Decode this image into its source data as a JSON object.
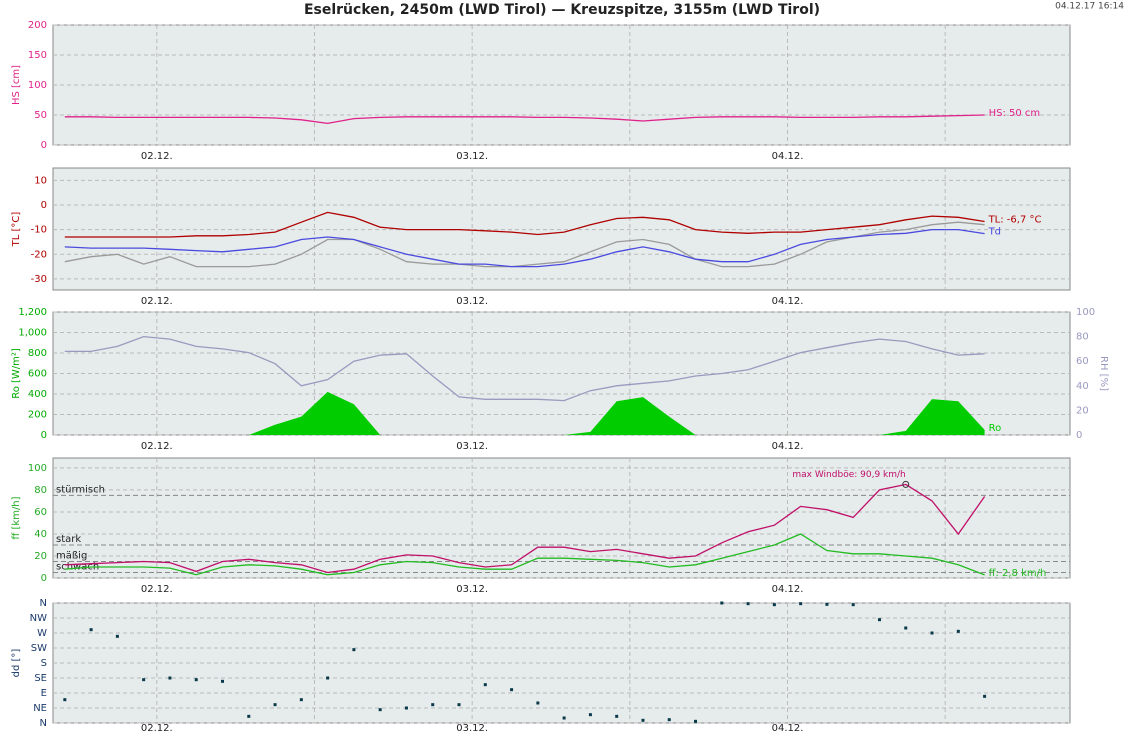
{
  "title": "Eselrücken, 2450m (LWD Tirol) — Kreuzspitze, 3155m (LWD Tirol)",
  "timestamp": "04.12.17 16:14",
  "chart_data": [
    {
      "type": "line",
      "ylabel": "HS [cm]",
      "axis_color": "#e0218a",
      "ylim": [
        0,
        200
      ],
      "yticks": [
        0,
        50,
        100,
        150,
        200
      ],
      "xlim": [
        -7.9,
        69.5
      ],
      "xticks": [
        {
          "value": 0,
          "label": "02.12."
        },
        {
          "value": 24,
          "label": "03.12."
        },
        {
          "value": 48,
          "label": "04.12."
        }
      ],
      "xminor": [
        12,
        36,
        60
      ],
      "x": [
        -7,
        -5,
        -3,
        -1,
        1,
        3,
        5,
        7,
        9,
        11,
        13,
        15,
        17,
        19,
        21,
        23,
        25,
        27,
        29,
        31,
        33,
        35,
        37,
        39,
        41,
        43,
        45,
        47,
        49,
        51,
        53,
        55,
        57,
        59,
        61,
        63
      ],
      "series": [
        {
          "name": "HS",
          "label": "HS: 50 cm",
          "color": "#e0218a",
          "values": [
            47,
            47,
            46,
            46,
            46,
            46,
            46,
            46,
            45,
            42,
            36,
            44,
            46,
            47,
            47,
            47,
            47,
            47,
            46,
            46,
            45,
            43,
            40,
            43,
            46,
            47,
            47,
            47,
            46,
            46,
            46,
            47,
            47,
            48,
            49,
            50
          ]
        }
      ]
    },
    {
      "type": "line",
      "ylabel": "TL [°C]",
      "axis_color": "#b00000",
      "ylim": [
        -34.5,
        15
      ],
      "yticks": [
        10,
        0,
        -10,
        -20,
        -30
      ],
      "xlim": [
        -7.9,
        69.5
      ],
      "xticks": [
        {
          "value": 0,
          "label": "02.12."
        },
        {
          "value": 24,
          "label": "03.12."
        },
        {
          "value": 48,
          "label": "04.12."
        }
      ],
      "xminor": [
        12,
        36,
        60
      ],
      "x": [
        -7,
        -5,
        -3,
        -1,
        1,
        3,
        5,
        7,
        9,
        11,
        13,
        15,
        17,
        19,
        21,
        23,
        25,
        27,
        29,
        31,
        33,
        35,
        37,
        39,
        41,
        43,
        45,
        47,
        49,
        51,
        53,
        55,
        57,
        59,
        61,
        63
      ],
      "series": [
        {
          "color": "#9a9a9a",
          "values": [
            -23,
            -21,
            -20,
            -24,
            -21,
            -25,
            -25,
            -25,
            -24,
            -20,
            -14,
            -14,
            -18,
            -23,
            -24,
            -24,
            -25,
            -25,
            -24,
            -23,
            -19,
            -15,
            -14,
            -16,
            -22,
            -25,
            -25,
            -24,
            -20,
            -15,
            -13,
            -11,
            -10,
            -8,
            -7,
            -8
          ]
        },
        {
          "name": "Td",
          "label": "Td",
          "color": "#4a4ae0",
          "values": [
            -17,
            -17.5,
            -17.5,
            -17.5,
            -18,
            -18.5,
            -19,
            -18,
            -17,
            -14,
            -13,
            -14,
            -17,
            -20,
            -22,
            -24,
            -24,
            -25,
            -25,
            -24,
            -22,
            -19,
            -17,
            -19,
            -22,
            -23,
            -23,
            -20,
            -16,
            -14,
            -13,
            -12,
            -11.5,
            -10,
            -10,
            -11.6
          ]
        },
        {
          "name": "TL",
          "label": "TL: -6,7 °C",
          "color": "#b00000",
          "values": [
            -13,
            -13,
            -13,
            -13,
            -13,
            -12.5,
            -12.5,
            -12,
            -11,
            -7,
            -3,
            -5,
            -9,
            -10,
            -10,
            -10,
            -10.5,
            -11,
            -12,
            -11,
            -8,
            -5.5,
            -5,
            -6,
            -10,
            -11,
            -11.5,
            -11,
            -11,
            -10,
            -9,
            -8,
            -6,
            -4.5,
            -5,
            -6.7
          ]
        }
      ]
    },
    {
      "type": "area",
      "ylabel": "Ro [W/m²]",
      "axis_color": "#00aa00",
      "ylim": [
        0,
        1200
      ],
      "yticks": [
        0,
        200,
        400,
        600,
        800,
        {
          "value": 1000,
          "label": "1,000"
        },
        {
          "value": 1200,
          "label": "1,200"
        }
      ],
      "y2label": "RH [%]",
      "y2_color": "#9a9ac0",
      "y2lim": [
        0,
        100
      ],
      "y2ticks": [
        0,
        20,
        40,
        60,
        80,
        100
      ],
      "xlim": [
        -7.9,
        69.5
      ],
      "xticks": [
        {
          "value": 0,
          "label": "02.12."
        },
        {
          "value": 24,
          "label": "03.12."
        },
        {
          "value": 48,
          "label": "04.12."
        }
      ],
      "xminor": [
        12,
        36,
        60
      ],
      "x": [
        -7,
        -5,
        -3,
        -1,
        1,
        3,
        5,
        7,
        9,
        11,
        13,
        15,
        17,
        19,
        21,
        23,
        25,
        27,
        29,
        31,
        33,
        35,
        37,
        39,
        41,
        43,
        45,
        47,
        49,
        51,
        53,
        55,
        57,
        59,
        61,
        63
      ],
      "series": [
        {
          "name": "Ro",
          "label": "Ro",
          "color": "#00cc00",
          "values": [
            0,
            0,
            0,
            0,
            0,
            0,
            0,
            0,
            100,
            180,
            420,
            300,
            0,
            0,
            0,
            0,
            0,
            0,
            0,
            0,
            30,
            330,
            370,
            180,
            0,
            0,
            0,
            0,
            0,
            0,
            0,
            0,
            40,
            350,
            330,
            50
          ]
        },
        {
          "name": "RH",
          "type": "line",
          "axis": "y2",
          "color": "#9a9ac0",
          "values": [
            68,
            68,
            72,
            80,
            78,
            72,
            70,
            67,
            58,
            40,
            45,
            60,
            65,
            66,
            48,
            31,
            29,
            29,
            29,
            28,
            36,
            40,
            42,
            44,
            48,
            50,
            53,
            60,
            67,
            71,
            75,
            78,
            76,
            70,
            65,
            66
          ]
        }
      ]
    },
    {
      "type": "line",
      "ylabel": "ff [km/h]",
      "axis_color": "#22aa22",
      "ylim": [
        0,
        109
      ],
      "yticks": [
        0,
        20,
        40,
        60,
        80,
        100
      ],
      "thresholds": [
        {
          "value": 75,
          "label": "stürmisch"
        },
        {
          "value": 30,
          "label": "stark"
        },
        {
          "value": 15,
          "label": "mäßig"
        },
        {
          "value": 5,
          "label": "schwach"
        }
      ],
      "annotation": "max Windböe: 90,9 km/h",
      "xlim": [
        -7.9,
        69.5
      ],
      "xticks": [
        {
          "value": 0,
          "label": "02.12."
        },
        {
          "value": 24,
          "label": "03.12."
        },
        {
          "value": 48,
          "label": "04.12."
        }
      ],
      "xminor": [
        12,
        36,
        60
      ],
      "x": [
        -7,
        -5,
        -3,
        -1,
        1,
        3,
        5,
        7,
        9,
        11,
        13,
        15,
        17,
        19,
        21,
        23,
        25,
        27,
        29,
        31,
        33,
        35,
        37,
        39,
        41,
        43,
        45,
        47,
        49,
        51,
        53,
        55,
        57,
        59,
        61,
        63
      ],
      "series": [
        {
          "color": "#c0106a",
          "max_marker": true,
          "values": [
            12,
            13,
            14,
            15,
            14,
            6,
            15,
            17,
            14,
            12,
            5,
            8,
            17,
            21,
            20,
            14,
            10,
            12,
            28,
            28,
            24,
            26,
            22,
            18,
            20,
            32,
            42,
            48,
            65,
            62,
            55,
            80,
            85,
            70,
            40,
            74
          ]
        },
        {
          "name": "ff",
          "label": "ff: 2,8 km/h",
          "color": "#22bb22",
          "values": [
            8,
            10,
            10,
            10,
            9,
            3,
            10,
            12,
            11,
            8,
            3,
            5,
            12,
            15,
            14,
            10,
            8,
            8,
            18,
            18,
            17,
            16,
            14,
            10,
            12,
            18,
            24,
            30,
            40,
            25,
            22,
            22,
            20,
            18,
            12,
            2.8
          ]
        }
      ]
    },
    {
      "type": "scatter",
      "ylabel": "dd [°]",
      "axis_color": "#1a3a6a",
      "ylim": [
        0,
        360
      ],
      "yticks": [
        {
          "value": 0,
          "label": "N"
        },
        {
          "value": 45,
          "label": "NE"
        },
        {
          "value": 90,
          "label": "E"
        },
        {
          "value": 135,
          "label": "SE"
        },
        {
          "value": 180,
          "label": "S"
        },
        {
          "value": 225,
          "label": "SW"
        },
        {
          "value": 270,
          "label": "W"
        },
        {
          "value": 315,
          "label": "NW"
        },
        {
          "value": 360,
          "label": "N"
        }
      ],
      "xlim": [
        -7.9,
        69.5
      ],
      "xticks": [
        {
          "value": 0,
          "label": "02.12."
        },
        {
          "value": 24,
          "label": "03.12."
        },
        {
          "value": 48,
          "label": "04.12."
        }
      ],
      "xminor": [
        12,
        36,
        60
      ],
      "x": [
        -7,
        -5,
        -3,
        -1,
        1,
        3,
        5,
        7,
        9,
        11,
        13,
        15,
        17,
        19,
        21,
        23,
        25,
        27,
        29,
        31,
        33,
        35,
        37,
        39,
        41,
        43,
        45,
        47,
        49,
        51,
        53,
        55,
        57,
        59,
        61,
        63
      ],
      "series": [
        {
          "name": "dd",
          "color": "#0a3a4a",
          "values": [
            70,
            280,
            260,
            130,
            135,
            130,
            125,
            20,
            55,
            70,
            135,
            220,
            40,
            45,
            55,
            55,
            115,
            100,
            60,
            15,
            25,
            20,
            8,
            10,
            5,
            360,
            358,
            355,
            358,
            356,
            355,
            310,
            285,
            270,
            275,
            80
          ]
        }
      ]
    }
  ]
}
